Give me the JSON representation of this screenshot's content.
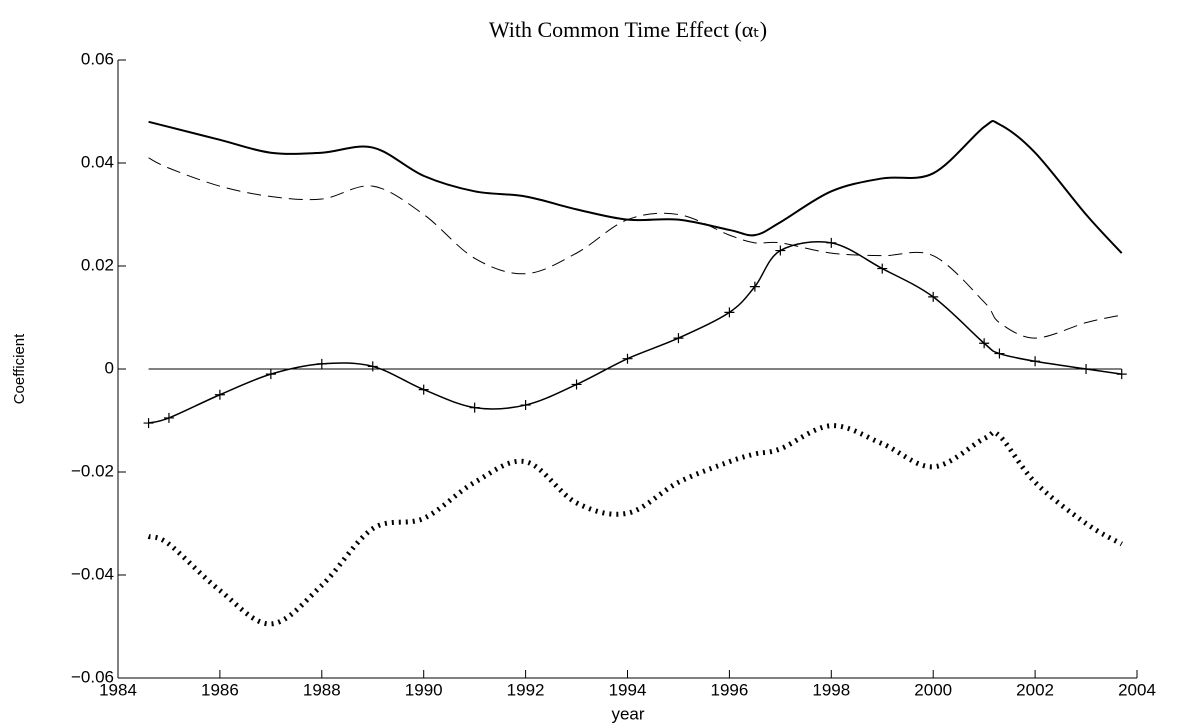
{
  "chart_data": {
    "type": "line",
    "title": "With Common Time Effect (αₜ)",
    "x_label": "year",
    "y_label": "Coefficient",
    "x": [
      1984.6,
      1985,
      1986,
      1987,
      1988,
      1989,
      1990,
      1991,
      1992,
      1993,
      1994,
      1995,
      1996,
      1996.5,
      1997,
      1998,
      1999,
      2000,
      2001,
      2001.3,
      2002,
      2003,
      2003.7
    ],
    "series": [
      {
        "color": "#000000",
        "style": "solid",
        "values": [
          0.048,
          0.047,
          0.0445,
          0.042,
          0.042,
          0.043,
          0.0375,
          0.0345,
          0.0335,
          0.031,
          0.029,
          0.029,
          0.027,
          0.026,
          0.0285,
          0.0345,
          0.037,
          0.038,
          0.047,
          0.0475,
          0.042,
          0.03,
          0.0225
        ]
      },
      {
        "color": "#000000",
        "style": "dashed",
        "values": [
          0.041,
          0.039,
          0.0355,
          0.0335,
          0.033,
          0.0355,
          0.03,
          0.0215,
          0.0185,
          0.0225,
          0.029,
          0.03,
          0.026,
          0.0245,
          0.0245,
          0.0225,
          0.022,
          0.022,
          0.013,
          0.009,
          0.006,
          0.009,
          0.0105
        ]
      },
      {
        "color": "#000000",
        "style": "plus",
        "values": [
          -0.0105,
          -0.0095,
          -0.005,
          -0.001,
          0.001,
          0.0005,
          -0.004,
          -0.0075,
          -0.007,
          -0.003,
          0.002,
          0.006,
          0.011,
          0.016,
          0.023,
          0.0245,
          0.0195,
          0.014,
          0.005,
          0.003,
          0.0015,
          0,
          -0.001
        ]
      },
      {
        "color": "#000000",
        "style": "dotted",
        "values": [
          -0.0325,
          -0.034,
          -0.043,
          -0.0495,
          -0.042,
          -0.031,
          -0.029,
          -0.022,
          -0.018,
          -0.026,
          -0.028,
          -0.022,
          -0.018,
          -0.0165,
          -0.0155,
          -0.011,
          -0.0145,
          -0.019,
          -0.0135,
          -0.013,
          -0.022,
          -0.03,
          -0.034
        ]
      }
    ],
    "reference_line": 0,
    "xlim": [
      1984,
      2004
    ],
    "xticks": [
      1984,
      1986,
      1988,
      1990,
      1992,
      1994,
      1996,
      1998,
      2000,
      2002,
      2004
    ],
    "ylim": [
      -0.06,
      0.06
    ],
    "yticks": [
      {
        "value": -0.06,
        "label": "−0.06"
      },
      {
        "value": -0.04,
        "label": "−0.04"
      },
      {
        "value": -0.02,
        "label": "−0.02"
      },
      0,
      0.02,
      0.04,
      0.06
    ]
  }
}
